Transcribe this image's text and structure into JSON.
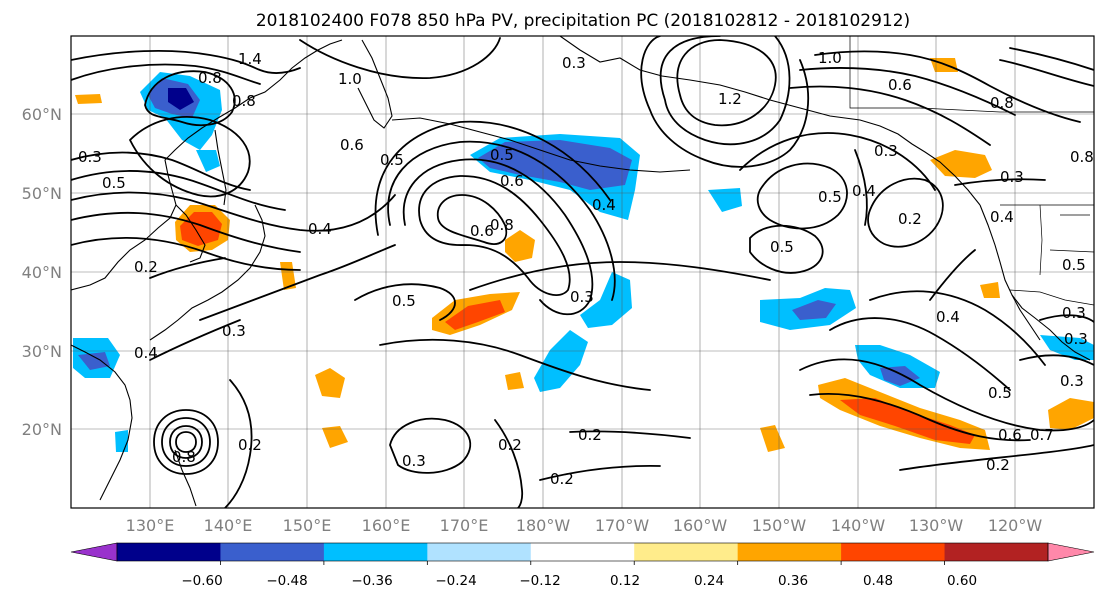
{
  "title": "2018102400 F078 850 hPa PV, precipitation PC (2018102812 - 2018102912)",
  "lat_labels": [
    "60°N",
    "50°N",
    "40°N",
    "30°N",
    "20°N"
  ],
  "lon_labels": [
    "130°E",
    "140°E",
    "150°E",
    "160°E",
    "170°E",
    "180°W",
    "170°W",
    "160°W",
    "150°W",
    "140°W",
    "130°W",
    "120°W"
  ],
  "colorbar": {
    "ticks": [
      "−0.60",
      "−0.48",
      "−0.36",
      "−0.24",
      "−0.12",
      "0.12",
      "0.24",
      "0.36",
      "0.48",
      "0.60"
    ],
    "colors": [
      "#9932CC",
      "#00008B",
      "#3A5FCD",
      "#00BFFF",
      "#B0E2FF",
      "#FFFFFF",
      "#FFEC8B",
      "#FFA500",
      "#FF4500",
      "#B22222",
      "#FF88AA"
    ],
    "extend": "both"
  },
  "contour_labels": [
    "1.4",
    "0.8",
    "0.8",
    "1.0",
    "0.3",
    "1.0",
    "1.2",
    "0.6",
    "0.8",
    "0.8",
    "0.3",
    "0.5",
    "0.6",
    "0.5",
    "0.6",
    "0.5",
    "0.4",
    "0.5",
    "0.3",
    "0.2",
    "0.4",
    "0.6",
    "0.4",
    "0.8",
    "0.3",
    "0.5",
    "0.2",
    "0.4",
    "0.5",
    "0.3",
    "0.3",
    "0.2",
    "0.5",
    "0.3",
    "0.3",
    "0.4",
    "0.5",
    "0.6",
    "0.7",
    "0.2",
    "0.2",
    "0.2",
    "0.3",
    "0.2",
    "0.4",
    "0.3",
    "0.8"
  ],
  "colors": {
    "axis_label": "#808080",
    "frame": "#000000",
    "gridline": "#555555"
  }
}
